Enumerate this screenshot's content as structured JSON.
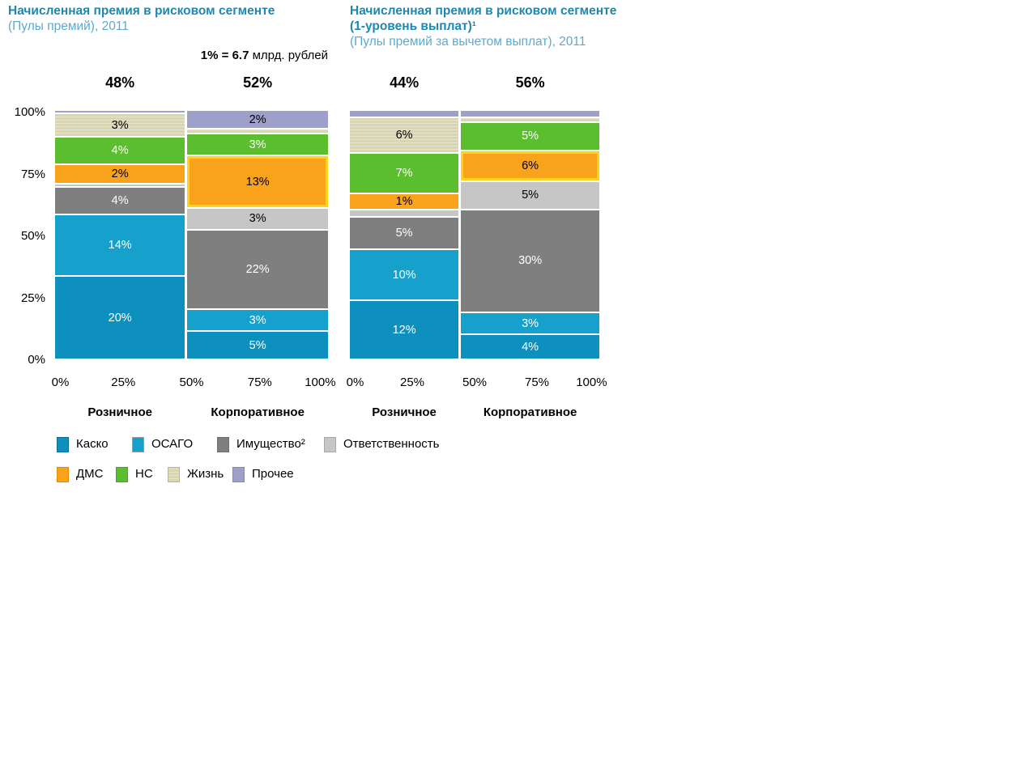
{
  "titles": {
    "left": {
      "line1": "Начисленная премия в рисковом сегменте",
      "line2": "(Пулы премий), 2011"
    },
    "right": {
      "line1": "Начисленная премия в рисковом сегменте",
      "line2": "(1-уровень выплат)¹",
      "line3": "(Пулы премий за вычетом выплат), 2011"
    }
  },
  "scale_note": {
    "bold": "1% = 6.7",
    "rest": " млрд. рублей"
  },
  "axes": {
    "y_ticks": [
      "100%",
      "75%",
      "50%",
      "25%",
      "0%"
    ],
    "x_ticks": [
      "0%",
      "25%",
      "50%",
      "75%",
      "100%"
    ]
  },
  "colors": {
    "title": "#1e87b2",
    "subtitle": "#5ea9cd",
    "highlight_outline": "#ffd21e",
    "Каско": "#0e90be",
    "ОСАГО": "#16a1cd",
    "Имущество": "#7f7f7f",
    "Ответственность": "#c6c6c6",
    "ДМС": "#f9a21c",
    "НС": "#5abe2e",
    "Жизнь": "#d7d4b0",
    "Прочее": "#9da0c9"
  },
  "legend": {
    "rows": [
      [
        {
          "key": "Каско",
          "label": "Каско"
        },
        {
          "key": "ОСАГО",
          "label": "ОСАГО"
        },
        {
          "key": "Имущество",
          "label": "Имущество²"
        },
        {
          "key": "Ответственность",
          "label": "Ответственность"
        }
      ],
      [
        {
          "key": "ДМС",
          "label": "ДМС"
        },
        {
          "key": "НС",
          "label": "НС"
        },
        {
          "key": "Жизнь",
          "label": "Жизнь"
        },
        {
          "key": "Прочее",
          "label": "Прочее"
        }
      ]
    ]
  },
  "chart_data": [
    {
      "type": "mekko",
      "title": "Начисленная премия в рисковом сегменте (Пулы премий), 2011",
      "unit_note": "1% = 6.7 млрд. рублей",
      "y_axis_range": [
        0,
        100
      ],
      "columns": [
        {
          "label": "Розничное",
          "width_pct": 48,
          "header": "48%",
          "segments_top_to_bottom": [
            {
              "name": "Прочее",
              "value": 0.5,
              "label": ""
            },
            {
              "name": "Жизнь",
              "value": 3,
              "label": "3%"
            },
            {
              "name": "НС",
              "value": 4,
              "label": "4%"
            },
            {
              "name": "ДМС",
              "value": 2,
              "label": "2%"
            },
            {
              "name": "Ответственность",
              "value": 0.5,
              "label": ""
            },
            {
              "name": "Имущество",
              "value": 4,
              "label": "4%"
            },
            {
              "name": "ОСАГО",
              "value": 14,
              "label": "14%"
            },
            {
              "name": "Каско",
              "value": 20,
              "label": "20%"
            }
          ]
        },
        {
          "label": "Корпоративное",
          "width_pct": 52,
          "header": "52%",
          "segments_top_to_bottom": [
            {
              "name": "Прочее",
              "value": 2,
              "label": "2%"
            },
            {
              "name": "Жизнь",
              "value": 1,
              "label": ""
            },
            {
              "name": "НС",
              "value": 3,
              "label": "3%"
            },
            {
              "name": "ДМС",
              "value": 13,
              "label": "13%",
              "highlight": true
            },
            {
              "name": "Ответственность",
              "value": 3,
              "label": "3%"
            },
            {
              "name": "Имущество",
              "value": 22,
              "label": "22%"
            },
            {
              "name": "ОСАГО",
              "value": 3,
              "label": "3%"
            },
            {
              "name": "Каско",
              "value": 5,
              "label": "5%"
            }
          ]
        }
      ]
    },
    {
      "type": "mekko",
      "title": "Начисленная премия в рисковом сегменте (1-уровень выплат)¹ (Пулы премий за вычетом выплат), 2011",
      "y_axis_range": [
        0,
        100
      ],
      "columns": [
        {
          "label": "Розничное",
          "width_pct": 44,
          "header": "44%",
          "segments_top_to_bottom": [
            {
              "name": "Прочее",
              "value": 1.5,
              "label": ""
            },
            {
              "name": "Жизнь",
              "value": 6,
              "label": "6%"
            },
            {
              "name": "НС",
              "value": 7,
              "label": "7%"
            },
            {
              "name": "ДМС",
              "value": 1,
              "label": "1%"
            },
            {
              "name": "Ответственность",
              "value": 1.5,
              "label": ""
            },
            {
              "name": "Имущество",
              "value": 5,
              "label": "5%"
            },
            {
              "name": "ОСАГО",
              "value": 10,
              "label": "10%"
            },
            {
              "name": "Каско",
              "value": 12,
              "label": "12%"
            }
          ]
        },
        {
          "label": "Корпоративное",
          "width_pct": 56,
          "header": "56%",
          "segments_top_to_bottom": [
            {
              "name": "Прочее",
              "value": 2,
              "label": ""
            },
            {
              "name": "Жизнь",
              "value": 1,
              "label": ""
            },
            {
              "name": "НС",
              "value": 5,
              "label": "5%"
            },
            {
              "name": "ДМС",
              "value": 6,
              "label": "6%",
              "highlight": true
            },
            {
              "name": "Ответственность",
              "value": 5,
              "label": "5%"
            },
            {
              "name": "Имущество",
              "value": 30,
              "label": "30%"
            },
            {
              "name": "ОСАГО",
              "value": 3,
              "label": "3%"
            },
            {
              "name": "Каско",
              "value": 4,
              "label": "4%"
            }
          ]
        }
      ]
    }
  ]
}
